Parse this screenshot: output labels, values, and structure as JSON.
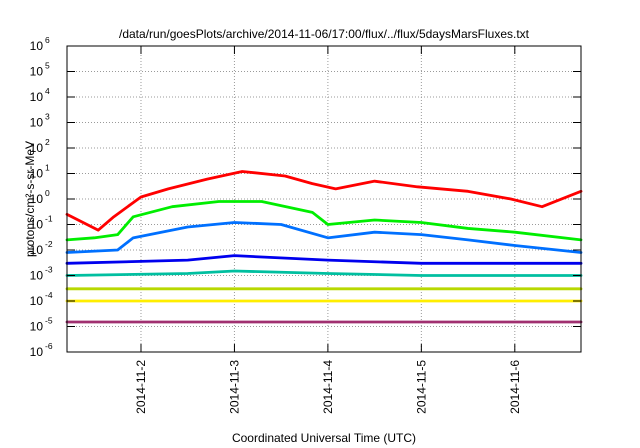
{
  "chart_data": {
    "type": "line",
    "title": "/data/run/goesPlots/archive/2014-11-06/17:00/flux/../flux/5daysMarsFluxes.txt",
    "xlabel": "Coordinated Universal Time (UTC)",
    "ylabel": "protons/cm²-s-sr-MeV",
    "xlim": [
      "2014-11-01T05:00",
      "2014-11-06T17:00"
    ],
    "ylim": [
      1e-06,
      1000000.0
    ],
    "yscale": "log",
    "grid": true,
    "legend": "none",
    "x_ticks": [
      "2014-11-2",
      "2014-11-3",
      "2014-11-4",
      "2014-11-5",
      "2014-11-6"
    ],
    "y_ticks": [
      {
        "base": "10",
        "exp": "-6"
      },
      {
        "base": "10",
        "exp": "-5"
      },
      {
        "base": "10",
        "exp": "-4"
      },
      {
        "base": "10",
        "exp": "-3"
      },
      {
        "base": "10",
        "exp": "-2"
      },
      {
        "base": "10",
        "exp": "-1"
      },
      {
        "base": "10",
        "exp": "0"
      },
      {
        "base": "10",
        "exp": "1"
      },
      {
        "base": "10",
        "exp": "2"
      },
      {
        "base": "10",
        "exp": "3"
      },
      {
        "base": "10",
        "exp": "4"
      },
      {
        "base": "10",
        "exp": "5"
      },
      {
        "base": "10",
        "exp": "6"
      }
    ],
    "series": [
      {
        "color": "#ff0000",
        "x": [
          "2014-11-01T05:00",
          "2014-11-01T13:00",
          "2014-11-01T17:00",
          "2014-11-02T00:00",
          "2014-11-02T07:00",
          "2014-11-02T17:00",
          "2014-11-03T02:00",
          "2014-11-03T13:00",
          "2014-11-03T20:00",
          "2014-11-04T02:00",
          "2014-11-04T12:00",
          "2014-11-04T23:00",
          "2014-11-05T12:00",
          "2014-11-05T23:00",
          "2014-11-06T07:00",
          "2014-11-06T17:00"
        ],
        "values": [
          0.25,
          0.06,
          0.2,
          1.2,
          2.5,
          6,
          12,
          8,
          4,
          2.5,
          5,
          3,
          2,
          1,
          0.5,
          2
        ]
      },
      {
        "color": "#00ee00",
        "x": [
          "2014-11-01T05:00",
          "2014-11-01T12:00",
          "2014-11-01T18:00",
          "2014-11-01T22:00",
          "2014-11-02T08:00",
          "2014-11-02T20:00",
          "2014-11-03T07:00",
          "2014-11-03T20:00",
          "2014-11-04T00:00",
          "2014-11-04T12:00",
          "2014-11-05T00:00",
          "2014-11-05T12:00",
          "2014-11-06T00:00",
          "2014-11-06T17:00"
        ],
        "values": [
          0.025,
          0.03,
          0.04,
          0.2,
          0.5,
          0.8,
          0.8,
          0.3,
          0.1,
          0.15,
          0.12,
          0.07,
          0.05,
          0.025
        ]
      },
      {
        "color": "#0070ff",
        "x": [
          "2014-11-01T05:00",
          "2014-11-01T18:00",
          "2014-11-01T22:00",
          "2014-11-02T12:00",
          "2014-11-03T00:00",
          "2014-11-03T12:00",
          "2014-11-04T00:00",
          "2014-11-04T12:00",
          "2014-11-05T00:00",
          "2014-11-05T12:00",
          "2014-11-06T00:00",
          "2014-11-06T17:00"
        ],
        "values": [
          0.008,
          0.01,
          0.03,
          0.08,
          0.12,
          0.1,
          0.03,
          0.05,
          0.04,
          0.025,
          0.015,
          0.008
        ]
      },
      {
        "color": "#0000ee",
        "x": [
          "2014-11-01T05:00",
          "2014-11-02T12:00",
          "2014-11-03T00:00",
          "2014-11-04T00:00",
          "2014-11-05T00:00",
          "2014-11-06T17:00"
        ],
        "values": [
          0.003,
          0.004,
          0.006,
          0.004,
          0.003,
          0.003
        ]
      },
      {
        "color": "#00bfa0",
        "x": [
          "2014-11-01T05:00",
          "2014-11-02T12:00",
          "2014-11-03T00:00",
          "2014-11-04T00:00",
          "2014-11-05T00:00",
          "2014-11-06T17:00"
        ],
        "values": [
          0.001,
          0.0012,
          0.0015,
          0.0012,
          0.001,
          0.001
        ]
      },
      {
        "color": "#b8d800",
        "x": [
          "2014-11-01T05:00",
          "2014-11-06T17:00"
        ],
        "values": [
          0.0003,
          0.0003
        ]
      },
      {
        "color": "#ffee00",
        "x": [
          "2014-11-01T05:00",
          "2014-11-06T17:00"
        ],
        "values": [
          0.0001,
          0.0001
        ]
      },
      {
        "color": "#a03070",
        "x": [
          "2014-11-01T05:00",
          "2014-11-06T17:00"
        ],
        "values": [
          1.5e-05,
          1.5e-05
        ]
      }
    ]
  }
}
